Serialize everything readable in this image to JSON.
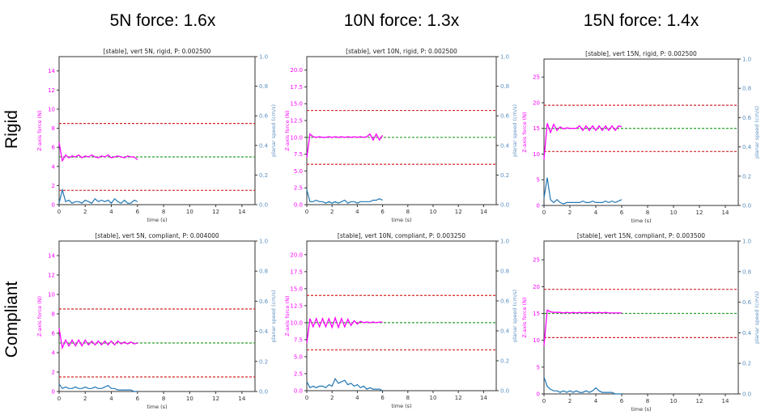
{
  "column_headers": [
    "5N force: 1.6x",
    "10N force: 1.3x",
    "15N force: 1.4x"
  ],
  "row_headers": [
    "Rigid",
    "Compliant"
  ],
  "colors": {
    "force": "#ff00ff",
    "speed": "#1f77b4",
    "target": "#2ca02c",
    "limit": "#d62728",
    "force_axis": "#ff00ff",
    "speed_axis": "#5b8fc0"
  },
  "chart_data": [
    {
      "type": "line",
      "title": "[stable], vert 5N, rigid, P: 0.002500",
      "xlabel": "time (s)",
      "ylabel": "Z-axis force (N)",
      "ylabel2": "planar speed (cm/s)",
      "xlim": [
        0,
        15
      ],
      "ylim": [
        0,
        15.5
      ],
      "ylim2": [
        0,
        1
      ],
      "xticks": [
        0,
        2,
        4,
        6,
        8,
        10,
        12,
        14
      ],
      "yticks": [
        0,
        2,
        4,
        6,
        8,
        10,
        12,
        14
      ],
      "yticks2": [
        0.0,
        0.2,
        0.4,
        0.6,
        0.8,
        1.0
      ],
      "target": 5,
      "limits": [
        8.5,
        1.5
      ],
      "dt": 0.25,
      "force": [
        6.5,
        4.6,
        5.2,
        4.9,
        5.1,
        5.0,
        5.2,
        4.9,
        5.1,
        5.0,
        5.2,
        5.0,
        4.9,
        5.1,
        5.0,
        5.2,
        4.9,
        5.0,
        5.1,
        5.0,
        4.9,
        5.1,
        5.0,
        5.0,
        4.7
      ],
      "speed": [
        0.01,
        0.1,
        0.02,
        0.03,
        0.01,
        0.02,
        0.02,
        0.01,
        0.03,
        0.02,
        0.01,
        0.04,
        0.02,
        0.03,
        0.02,
        0.03,
        0.01,
        0.04,
        0.02,
        0.01,
        0.03,
        0.01,
        0.01,
        0.03,
        0.02
      ]
    },
    {
      "type": "line",
      "title": "[stable], vert 10N, rigid, P: 0.002500",
      "xlabel": "time (s)",
      "ylabel": "Z-axis force (N)",
      "ylabel2": "planar speed (cm/s)",
      "xlim": [
        0,
        15
      ],
      "ylim": [
        0,
        22
      ],
      "ylim2": [
        0,
        1
      ],
      "xticks": [
        0,
        2,
        4,
        6,
        8,
        10,
        12,
        14
      ],
      "yticks": [
        0.0,
        2.5,
        5.0,
        7.5,
        10.0,
        12.5,
        15.0,
        17.5,
        20.0
      ],
      "yticks2": [
        0.0,
        0.2,
        0.4,
        0.6,
        0.8,
        1.0
      ],
      "target": 10,
      "limits": [
        14,
        6
      ],
      "dt": 0.25,
      "force": [
        7,
        10.5,
        10.1,
        10.0,
        10.1,
        10.0,
        10.0,
        10.1,
        10.0,
        10.1,
        10.0,
        10.1,
        10.0,
        10.1,
        10.0,
        10.1,
        10.0,
        10.1,
        10.0,
        10.1,
        10.5,
        9.6,
        10.5,
        9.6,
        10.3
      ],
      "speed": [
        0.1,
        0.02,
        0.02,
        0.03,
        0.02,
        0.02,
        0.01,
        0.02,
        0.01,
        0.02,
        0.01,
        0.02,
        0.03,
        0.01,
        0.02,
        0.02,
        0.01,
        0.02,
        0.02,
        0.02,
        0.02,
        0.03,
        0.03,
        0.04,
        0.03
      ]
    },
    {
      "type": "line",
      "title": "[stable], vert 15N, rigid, P: 0.002500",
      "xlabel": "time (s)",
      "ylabel": "Z-axis force (N)",
      "ylabel2": "planar speed (cm/s)",
      "xlim": [
        0,
        15
      ],
      "ylim": [
        0,
        28.5
      ],
      "ylim2": [
        0,
        1
      ],
      "xticks": [
        0,
        2,
        4,
        6,
        8,
        10,
        12,
        14
      ],
      "yticks": [
        0,
        5,
        10,
        15,
        20,
        25
      ],
      "yticks2": [
        0.0,
        0.2,
        0.4,
        0.6,
        0.8,
        1.0
      ],
      "target": 15,
      "limits": [
        19.5,
        10.5
      ],
      "dt": 0.25,
      "force": [
        9,
        16,
        14.2,
        15.8,
        14.6,
        15.3,
        14.9,
        15.1,
        15.0,
        15.0,
        15.0,
        15.5,
        14.6,
        15.5,
        14.6,
        15.5,
        14.6,
        15.5,
        14.6,
        15.5,
        14.6,
        15.5,
        14.6,
        15.5,
        15.3
      ],
      "speed": [
        0.05,
        0.19,
        0.04,
        0.02,
        0.04,
        0.02,
        0.01,
        0.02,
        0.02,
        0.02,
        0.02,
        0.02,
        0.03,
        0.02,
        0.02,
        0.03,
        0.02,
        0.02,
        0.02,
        0.03,
        0.02,
        0.03,
        0.02,
        0.03,
        0.04
      ]
    },
    {
      "type": "line",
      "title": "[stable], vert 5N, compliant, P: 0.004000",
      "xlabel": "time (s)",
      "ylabel": "Z-axis force (N)",
      "ylabel2": "planar speed (cm/s)",
      "xlim": [
        0,
        15
      ],
      "ylim": [
        0,
        15.5
      ],
      "ylim2": [
        0,
        1
      ],
      "xticks": [
        0,
        2,
        4,
        6,
        8,
        10,
        12,
        14
      ],
      "yticks": [
        0,
        2,
        4,
        6,
        8,
        10,
        12,
        14
      ],
      "yticks2": [
        0.0,
        0.2,
        0.4,
        0.6,
        0.8,
        1.0
      ],
      "target": 5,
      "limits": [
        8.5,
        1.5
      ],
      "dt": 0.25,
      "force": [
        6.5,
        4.5,
        5.3,
        4.7,
        5.3,
        4.7,
        5.3,
        4.7,
        5.3,
        4.8,
        5.2,
        4.8,
        5.2,
        4.8,
        5.2,
        4.8,
        5.2,
        4.8,
        5.2,
        4.9,
        5.1,
        4.9,
        5.1,
        4.9,
        5.0
      ],
      "speed": [
        0.05,
        0.02,
        0.03,
        0.02,
        0.02,
        0.03,
        0.02,
        0.02,
        0.03,
        0.02,
        0.02,
        0.03,
        0.02,
        0.02,
        0.03,
        0.04,
        0.02,
        0.02,
        0.01,
        0.01,
        0.01,
        0.01,
        0.01,
        0.0,
        0.0
      ]
    },
    {
      "type": "line",
      "title": "[stable], vert 10N, compliant, P: 0.003250",
      "xlabel": "time (s)",
      "ylabel": "Z-axis force (N)",
      "ylabel2": "planar speed (cm/s)",
      "xlim": [
        0,
        15
      ],
      "ylim": [
        0,
        22
      ],
      "ylim2": [
        0,
        1
      ],
      "xticks": [
        0,
        2,
        4,
        6,
        8,
        10,
        12,
        14
      ],
      "yticks": [
        0.0,
        2.5,
        5.0,
        7.5,
        10.0,
        12.5,
        15.0,
        17.5,
        20.0
      ],
      "yticks2": [
        0.0,
        0.2,
        0.4,
        0.6,
        0.8,
        1.0
      ],
      "target": 10,
      "limits": [
        14,
        6
      ],
      "dt": 0.25,
      "force": [
        7,
        10.6,
        9.4,
        10.6,
        9.4,
        10.6,
        9.4,
        10.6,
        9.3,
        10.7,
        9.3,
        10.6,
        9.4,
        10.5,
        9.6,
        10.3,
        9.8,
        10.2,
        10.0,
        10.1,
        10.0,
        10.1,
        10.0,
        10.1,
        10.1
      ],
      "speed": [
        0.06,
        0.02,
        0.03,
        0.02,
        0.03,
        0.03,
        0.02,
        0.04,
        0.03,
        0.08,
        0.05,
        0.06,
        0.07,
        0.04,
        0.05,
        0.03,
        0.04,
        0.02,
        0.03,
        0.01,
        0.02,
        0.01,
        0.01,
        0.01,
        0.0
      ]
    },
    {
      "type": "line",
      "title": "[stable], vert 15N, compliant, P: 0.003500",
      "xlabel": "time (s)",
      "ylabel": "Z-axis force (N)",
      "ylabel2": "planar speed (cm/s)",
      "xlim": [
        0,
        15
      ],
      "ylim": [
        0,
        28.5
      ],
      "ylim2": [
        0,
        1
      ],
      "xticks": [
        0,
        2,
        4,
        6,
        8,
        10,
        12,
        14
      ],
      "yticks": [
        0,
        5,
        10,
        15,
        20,
        25
      ],
      "yticks2": [
        0.0,
        0.2,
        0.4,
        0.6,
        0.8,
        1.0
      ],
      "target": 15,
      "limits": [
        19.5,
        10.5
      ],
      "dt": 0.25,
      "force": [
        9,
        15.6,
        15.3,
        15.2,
        15.2,
        15.2,
        15.1,
        15.2,
        15.1,
        15.2,
        15.1,
        15.2,
        15.1,
        15.2,
        15.1,
        15.2,
        15.1,
        15.2,
        15.1,
        15.2,
        15.1,
        15.1,
        15.1,
        15.1,
        15.1
      ],
      "speed": [
        0.11,
        0.05,
        0.03,
        0.02,
        0.02,
        0.01,
        0.02,
        0.01,
        0.02,
        0.01,
        0.02,
        0.01,
        0.01,
        0.02,
        0.01,
        0.02,
        0.04,
        0.02,
        0.01,
        0.01,
        0.01,
        0.01,
        0.0,
        0.0,
        0.0
      ]
    }
  ]
}
